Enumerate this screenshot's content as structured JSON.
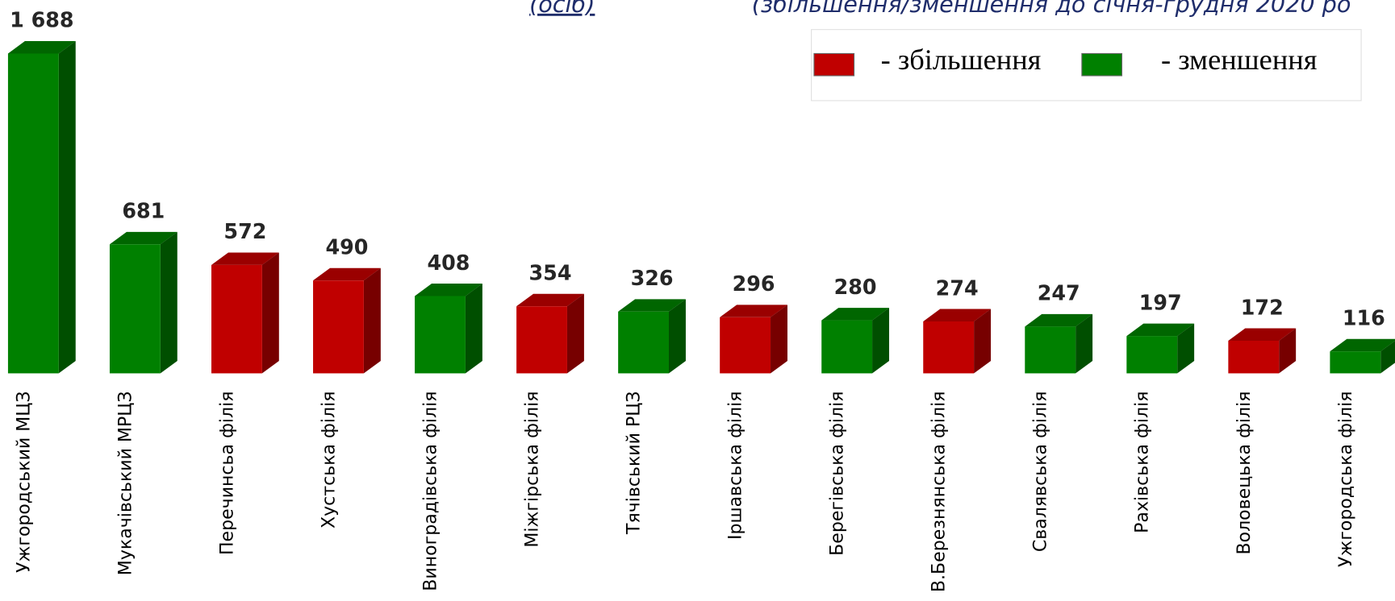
{
  "chart_data": {
    "type": "bar3d",
    "title": "(осіб)",
    "subtitle": "(збільшення/зменшення до січня-грудня 2020  ро",
    "categories": [
      "Ужгородський МЦЗ",
      "Мукачівський МРЦЗ",
      "Перечинсьа філія",
      "Хустська філія",
      "Виноградівська філія",
      "Міжгірська філія",
      "Тячівський РЦЗ",
      "Іршавська філія",
      "Берегівська філія",
      "В.Березнянська філія",
      "Свалявська філія",
      "Рахівська філія",
      "Воловецька філія",
      "Ужгородська філія"
    ],
    "values": [
      1688,
      681,
      572,
      490,
      408,
      354,
      326,
      296,
      280,
      274,
      247,
      197,
      172,
      116
    ],
    "value_labels": [
      "1 688",
      "681",
      "572",
      "490",
      "408",
      "354",
      "326",
      "296",
      "280",
      "274",
      "247",
      "197",
      "172",
      "116"
    ],
    "colors": [
      "#008000",
      "#008000",
      "#c00000",
      "#c00000",
      "#008000",
      "#c00000",
      "#008000",
      "#c00000",
      "#008000",
      "#c00000",
      "#008000",
      "#008000",
      "#c00000",
      "#008000"
    ],
    "legend": [
      {
        "label": "- збільшення",
        "color": "#c00000"
      },
      {
        "label": "- зменшення",
        "color": "#008000"
      }
    ]
  }
}
